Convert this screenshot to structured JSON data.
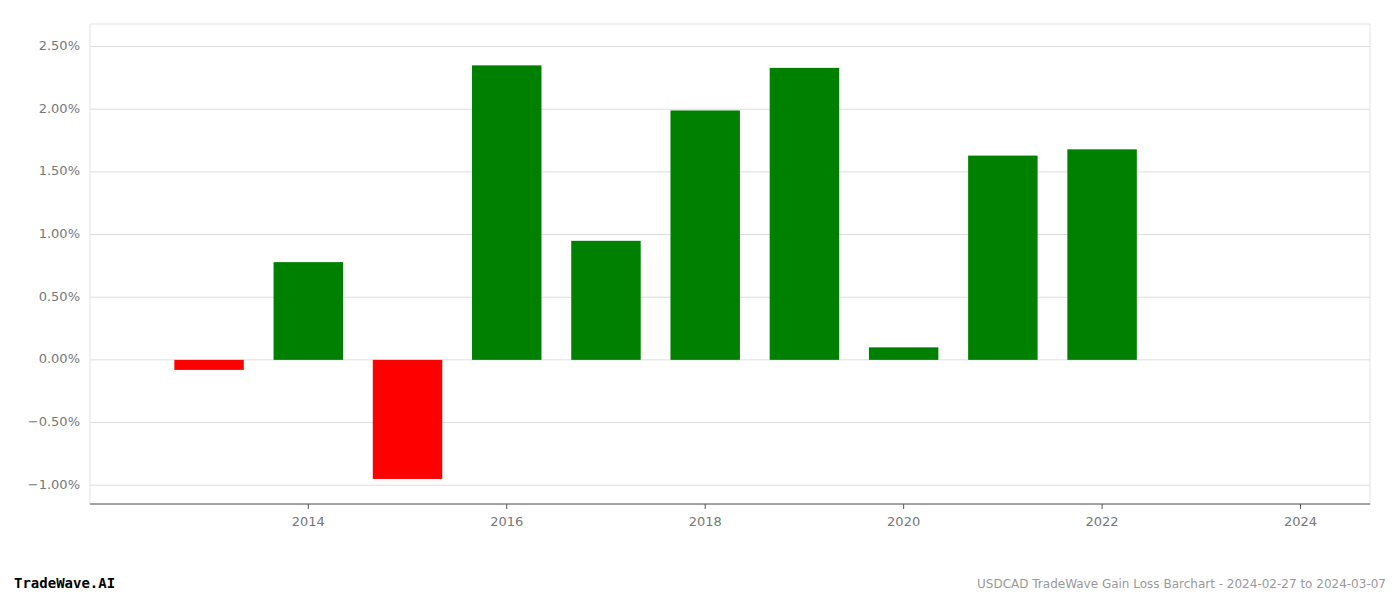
{
  "chart_data": {
    "type": "bar",
    "x": [
      2013,
      2014,
      2015,
      2016,
      2017,
      2018,
      2019,
      2020,
      2021,
      2022,
      2023
    ],
    "values": [
      -0.0008,
      0.0078,
      -0.0095,
      0.0235,
      0.0095,
      0.0199,
      0.0233,
      0.001,
      0.0163,
      0.0168,
      0.0
    ],
    "colors": [
      "#ff0000",
      "#008000",
      "#ff0000",
      "#008000",
      "#008000",
      "#008000",
      "#008000",
      "#008000",
      "#008000",
      "#008000",
      "#008000"
    ],
    "xlim": [
      2011.8,
      2024.7
    ],
    "ylim": [
      -0.0115,
      0.0268
    ],
    "xticks": [
      2014,
      2016,
      2018,
      2020,
      2022,
      2024
    ],
    "yticks": [
      {
        "value": -0.01,
        "label": "−1.00%"
      },
      {
        "value": -0.005,
        "label": "−0.50%"
      },
      {
        "value": 0.0,
        "label": "0.00%"
      },
      {
        "value": 0.005,
        "label": "0.50%"
      },
      {
        "value": 0.01,
        "label": "1.00%"
      },
      {
        "value": 0.015,
        "label": "1.50%"
      },
      {
        "value": 0.02,
        "label": "2.00%"
      },
      {
        "value": 0.025,
        "label": "2.50%"
      }
    ],
    "grid": true,
    "annotations": [
      "TradeWave.AI",
      "USDCAD TradeWave Gain Loss Barchart - 2024-02-27 to 2024-03-07"
    ]
  }
}
